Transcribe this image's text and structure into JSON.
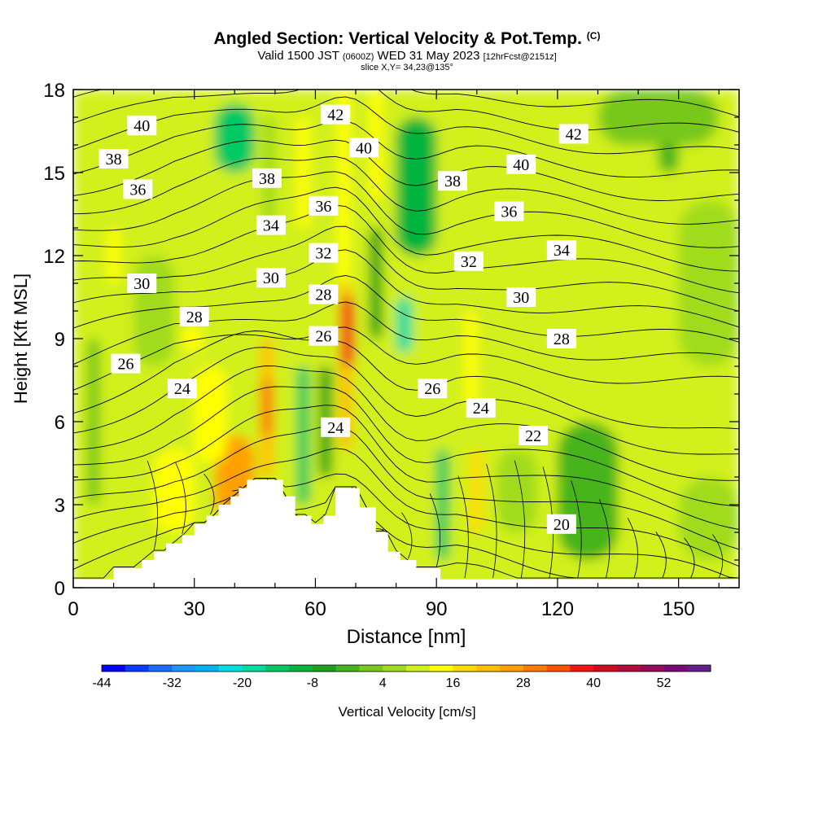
{
  "header": {
    "title": "Angled Section: Vertical Velocity & Pot.Temp.",
    "title_unit": "(C)",
    "valid_prefix": "Valid 1500 JST",
    "valid_utc": "(0600Z)",
    "valid_date": "WED 31 May 2023",
    "forecast": "[12hrFcst@2151z]",
    "slice": "slice X,Y= 34,23@135°"
  },
  "chart_data": {
    "type": "heatmap",
    "xlabel": "Distance [nm]",
    "ylabel": "Height [Kft MSL]",
    "xlim": [
      0,
      165
    ],
    "ylim": [
      0,
      18
    ],
    "x_ticks": [
      0,
      30,
      60,
      90,
      120,
      150
    ],
    "y_ticks": [
      0,
      3,
      6,
      9,
      12,
      15,
      18
    ],
    "colorbar": {
      "label": "Vertical Velocity [cm/s]",
      "tick_labels": [
        "-44",
        "-32",
        "-20",
        "-8",
        "4",
        "16",
        "28",
        "40",
        "52"
      ],
      "tick_values": [
        -44,
        -32,
        -20,
        -8,
        4,
        16,
        28,
        40,
        52
      ],
      "range": [
        -44,
        60
      ],
      "colors": [
        "#0000ff",
        "#0a3cff",
        "#1a6cff",
        "#1e96ff",
        "#00b4f0",
        "#00e0e0",
        "#00dca0",
        "#00c864",
        "#00b43c",
        "#1ea01e",
        "#46b41e",
        "#78c81e",
        "#a0dc1e",
        "#d2f01e",
        "#ffff00",
        "#ffdc00",
        "#ffc000",
        "#ffa000",
        "#ff7800",
        "#ff5000",
        "#f01414",
        "#d20a1e",
        "#b40a3c",
        "#960a5a",
        "#780a78",
        "#641e8c"
      ]
    },
    "terrain": [
      [
        0,
        0.3
      ],
      [
        10,
        0.3
      ],
      [
        10,
        0.7
      ],
      [
        17,
        0.7
      ],
      [
        17,
        1.0
      ],
      [
        20,
        1.0
      ],
      [
        20,
        1.3
      ],
      [
        23,
        1.3
      ],
      [
        23,
        1.6
      ],
      [
        27,
        1.6
      ],
      [
        27,
        1.9
      ],
      [
        30,
        1.9
      ],
      [
        30,
        2.3
      ],
      [
        33,
        2.3
      ],
      [
        33,
        2.6
      ],
      [
        36,
        2.6
      ],
      [
        36,
        3.0
      ],
      [
        39,
        3.0
      ],
      [
        39,
        3.3
      ],
      [
        41,
        3.3
      ],
      [
        41,
        3.6
      ],
      [
        43,
        3.6
      ],
      [
        43,
        3.9
      ],
      [
        52,
        3.9
      ],
      [
        52,
        3.3
      ],
      [
        55,
        3.3
      ],
      [
        55,
        2.6
      ],
      [
        59,
        2.6
      ],
      [
        59,
        2.3
      ],
      [
        62,
        2.3
      ],
      [
        62,
        2.6
      ],
      [
        65,
        2.6
      ],
      [
        65,
        3.6
      ],
      [
        71,
        3.6
      ],
      [
        71,
        2.9
      ],
      [
        75,
        2.9
      ],
      [
        75,
        2.0
      ],
      [
        78,
        2.0
      ],
      [
        78,
        1.3
      ],
      [
        81,
        1.3
      ],
      [
        81,
        1.0
      ],
      [
        85,
        1.0
      ],
      [
        85,
        0.7
      ],
      [
        91,
        0.7
      ],
      [
        91,
        0.3
      ],
      [
        165,
        0.3
      ]
    ],
    "velocity_features": [
      {
        "x": 0,
        "x2": 165,
        "y": 0,
        "y2": 18,
        "w": 8
      },
      {
        "x": 35,
        "x2": 45,
        "y": 2.5,
        "y2": 5.5,
        "w": 24
      },
      {
        "x": 30,
        "x2": 38,
        "y": 4.5,
        "y2": 8,
        "w": 14
      },
      {
        "x": 48,
        "x2": 48,
        "y": 4,
        "y2": 9,
        "w": 22
      },
      {
        "x": 48,
        "x2": 48,
        "y": 5.5,
        "y2": 7.5,
        "w": 30
      },
      {
        "x": 56,
        "x2": 58,
        "y": 3,
        "y2": 8,
        "w": -14
      },
      {
        "x": 62,
        "x2": 63,
        "y": 4,
        "y2": 8,
        "w": -8
      },
      {
        "x": 67,
        "x2": 68,
        "y": 5,
        "y2": 11,
        "w": 22
      },
      {
        "x": 68,
        "x2": 68,
        "y": 8,
        "y2": 10.5,
        "w": 36
      },
      {
        "x": 66,
        "x2": 68,
        "y": 11,
        "y2": 18,
        "w": 14
      },
      {
        "x": 74,
        "x2": 76,
        "y": 9,
        "y2": 13,
        "w": -8
      },
      {
        "x": 80,
        "x2": 84,
        "y": 8.5,
        "y2": 10.5,
        "w": -18
      },
      {
        "x": 80,
        "x2": 90,
        "y": 12,
        "y2": 17,
        "w": -12
      },
      {
        "x": 91,
        "x2": 92,
        "y": 1,
        "y2": 5,
        "w": -14
      },
      {
        "x": 100,
        "x2": 100,
        "y": 2,
        "y2": 5,
        "w": 18
      },
      {
        "x": 97,
        "x2": 100,
        "y": 6.5,
        "y2": 10,
        "w": 14
      },
      {
        "x": 40,
        "x2": 40,
        "y": 11,
        "y2": 18,
        "w": 10
      },
      {
        "x": 47,
        "x2": 50,
        "y": 13,
        "y2": 17,
        "w": 6
      },
      {
        "x": 56,
        "x2": 58,
        "y": 13,
        "y2": 17,
        "w": 14
      },
      {
        "x": 74,
        "x2": 76,
        "y": 14,
        "y2": 18,
        "w": 12
      },
      {
        "x": 10,
        "x2": 10,
        "y": 11,
        "y2": 13,
        "w": 14
      },
      {
        "x": 35,
        "x2": 45,
        "y": 15,
        "y2": 17.5,
        "w": -14
      },
      {
        "x": 27,
        "x2": 32,
        "y": 8.5,
        "y2": 9.5,
        "w": 14
      },
      {
        "x": 15,
        "x2": 25,
        "y": 8,
        "y2": 12,
        "w": 6
      },
      {
        "x": 4,
        "x2": 6,
        "y": 3,
        "y2": 9,
        "w": 0
      },
      {
        "x": 120,
        "x2": 135,
        "y": 1,
        "y2": 6,
        "w": -2
      },
      {
        "x": 145,
        "x2": 150,
        "y": 15,
        "y2": 17,
        "w": -2
      },
      {
        "x": 150,
        "x2": 165,
        "y": 8,
        "y2": 14,
        "w": 6
      },
      {
        "x": 130,
        "x2": 160,
        "y": 16,
        "y2": 18,
        "w": 0
      },
      {
        "x": 105,
        "x2": 115,
        "y": 2,
        "y2": 5,
        "w": 4
      },
      {
        "x": 150,
        "x2": 165,
        "y": 1,
        "y2": 4,
        "w": 6
      },
      {
        "x": 20,
        "x2": 30,
        "y": 2,
        "y2": 5,
        "w": 14
      }
    ],
    "theta_contours": {
      "levels": [
        20,
        21,
        22,
        23,
        24,
        25,
        26,
        27,
        28,
        29,
        30,
        31,
        32,
        33,
        34,
        35,
        36,
        37,
        38,
        39,
        40,
        41,
        42,
        43
      ],
      "labels": [
        {
          "text": "40",
          "x": 17,
          "y": 16.7
        },
        {
          "text": "38",
          "x": 10,
          "y": 15.5
        },
        {
          "text": "36",
          "x": 16,
          "y": 14.4
        },
        {
          "text": "30",
          "x": 17,
          "y": 11.0
        },
        {
          "text": "28",
          "x": 30,
          "y": 9.8
        },
        {
          "text": "26",
          "x": 13,
          "y": 8.1
        },
        {
          "text": "24",
          "x": 27,
          "y": 7.2
        },
        {
          "text": "38",
          "x": 48,
          "y": 14.8
        },
        {
          "text": "34",
          "x": 49,
          "y": 13.1
        },
        {
          "text": "30",
          "x": 49,
          "y": 11.2
        },
        {
          "text": "42",
          "x": 65,
          "y": 17.1
        },
        {
          "text": "40",
          "x": 72,
          "y": 15.9
        },
        {
          "text": "36",
          "x": 62,
          "y": 13.8
        },
        {
          "text": "32",
          "x": 62,
          "y": 12.1
        },
        {
          "text": "28",
          "x": 62,
          "y": 10.6
        },
        {
          "text": "26",
          "x": 62,
          "y": 9.1
        },
        {
          "text": "24",
          "x": 65,
          "y": 5.8
        },
        {
          "text": "38",
          "x": 94,
          "y": 14.7
        },
        {
          "text": "32",
          "x": 98,
          "y": 11.8
        },
        {
          "text": "26",
          "x": 89,
          "y": 7.2
        },
        {
          "text": "24",
          "x": 101,
          "y": 6.5
        },
        {
          "text": "40",
          "x": 111,
          "y": 15.3
        },
        {
          "text": "36",
          "x": 108,
          "y": 13.6
        },
        {
          "text": "30",
          "x": 111,
          "y": 10.5
        },
        {
          "text": "28",
          "x": 121,
          "y": 9.0
        },
        {
          "text": "22",
          "x": 114,
          "y": 5.5
        },
        {
          "text": "42",
          "x": 124,
          "y": 16.4
        },
        {
          "text": "34",
          "x": 121,
          "y": 12.2
        },
        {
          "text": "20",
          "x": 121,
          "y": 2.3
        }
      ]
    }
  }
}
